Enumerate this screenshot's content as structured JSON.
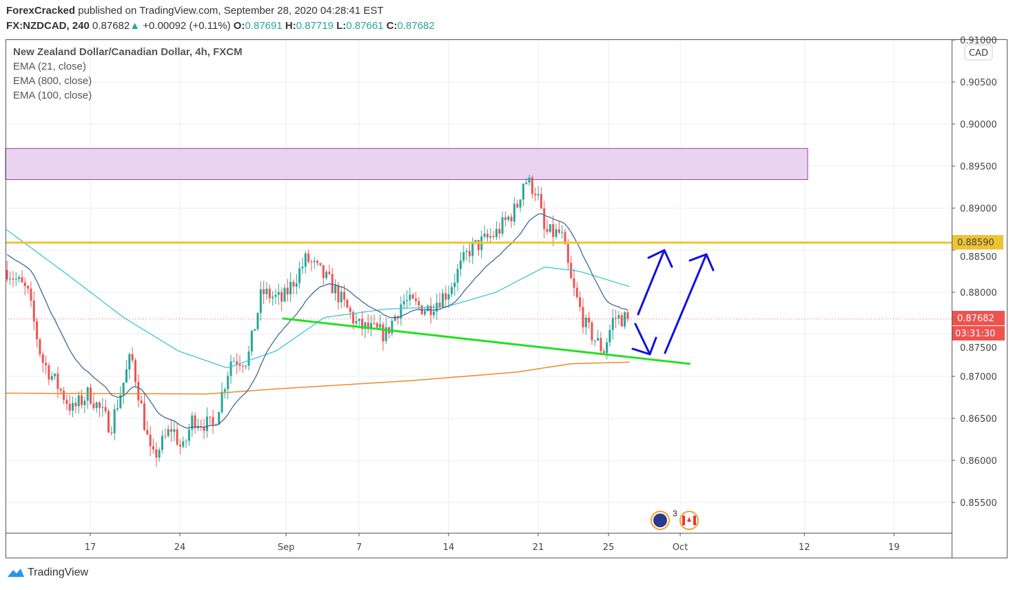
{
  "header": {
    "author": "ForexCracked",
    "published": " published on TradingView.com, September 28, 2020 04:28:41 EST",
    "symbol": "FX:NZDCAD, 240",
    "last": "0.87682",
    "change": "+0.00092 (+0.11%)",
    "o_label": "O:",
    "o": "0.87691",
    "h_label": "H:",
    "h": "0.87719",
    "l_label": "L:",
    "l": "0.87661",
    "c_label": "C:",
    "c": "0.87682"
  },
  "legend": {
    "title": "New Zealand Dollar/Canadian Dollar, 4h, FXCM",
    "ema1": "EMA (21, close)",
    "ema2": "EMA (800, close)",
    "ema3": "EMA (100, close)"
  },
  "footer": {
    "brand": "TradingView"
  },
  "chart_data": {
    "type": "candlestick",
    "currency": "CAD",
    "y_ticks": [
      "0.91000",
      "0.90500",
      "0.90000",
      "0.89500",
      "0.89000",
      "0.88500",
      "0.88000",
      "0.87500",
      "0.87000",
      "0.86500",
      "0.86000",
      "0.85500"
    ],
    "ylim": [
      0.8516,
      0.9103
    ],
    "x_ticks": [
      {
        "label": "17",
        "day": 0
      },
      {
        "label": "24",
        "day": 7
      },
      {
        "label": "Sep",
        "day": 15.3
      },
      {
        "label": "7",
        "day": 21
      },
      {
        "label": "14",
        "day": 28
      },
      {
        "label": "21",
        "day": 35
      },
      {
        "label": "25",
        "day": 40.5
      },
      {
        "label": "Oct",
        "day": 46.1
      },
      {
        "label": "12",
        "day": 55.8
      },
      {
        "label": "19",
        "day": 62.8
      }
    ],
    "x_unit": "days since Aug 17, 2020",
    "close_path": [
      [
        -6.6,
        0.8828
      ],
      [
        -4.9,
        0.88
      ],
      [
        -3.8,
        0.872
      ],
      [
        -1.4,
        0.866
      ],
      [
        -0.1,
        0.868
      ],
      [
        1.6,
        0.864
      ],
      [
        3.2,
        0.8725
      ],
      [
        4.8,
        0.86
      ],
      [
        6.4,
        0.864
      ],
      [
        7.2,
        0.861
      ],
      [
        8.0,
        0.865
      ],
      [
        9.6,
        0.864
      ],
      [
        11.0,
        0.872
      ],
      [
        12.3,
        0.872
      ],
      [
        13.4,
        0.88
      ],
      [
        15.0,
        0.879
      ],
      [
        16.9,
        0.884
      ],
      [
        18.8,
        0.881
      ],
      [
        20.9,
        0.876
      ],
      [
        23.1,
        0.875
      ],
      [
        24.4,
        0.879
      ],
      [
        26.3,
        0.878
      ],
      [
        27.9,
        0.88
      ],
      [
        29.6,
        0.885
      ],
      [
        31.7,
        0.887
      ],
      [
        33.3,
        0.89
      ],
      [
        33.9,
        0.8935
      ],
      [
        34.9,
        0.892
      ],
      [
        35.5,
        0.887
      ],
      [
        36.8,
        0.887
      ],
      [
        37.6,
        0.881
      ],
      [
        38.7,
        0.876
      ],
      [
        40.1,
        0.873
      ],
      [
        40.9,
        0.877
      ],
      [
        42.2,
        0.87682
      ]
    ],
    "ema21_start": 0.8848,
    "ema100": [
      [
        -6.6,
        0.8875
      ],
      [
        -1.7,
        0.882
      ],
      [
        2.6,
        0.877
      ],
      [
        6.9,
        0.873
      ],
      [
        10.7,
        0.871
      ],
      [
        14.5,
        0.873
      ],
      [
        18.3,
        0.877
      ],
      [
        23.1,
        0.878
      ],
      [
        27.9,
        0.8783
      ],
      [
        31.7,
        0.88
      ],
      [
        35.5,
        0.883
      ],
      [
        38.2,
        0.8825
      ],
      [
        42.3,
        0.8806
      ]
    ],
    "ema800": [
      [
        -6.6,
        0.868
      ],
      [
        9.1,
        0.8679
      ],
      [
        14.5,
        0.8685
      ],
      [
        25.2,
        0.8695
      ],
      [
        33.3,
        0.8705
      ],
      [
        37.6,
        0.8715
      ],
      [
        42.3,
        0.8717
      ]
    ],
    "resistance_zone": [
      0.8934,
      0.8971
    ],
    "level": {
      "value": 0.8859,
      "label": "0.88590"
    },
    "trendline": [
      [
        15.0,
        0.87689
      ],
      [
        46.9,
        0.87148
      ]
    ],
    "last_price": {
      "value": 0.87682,
      "label": "0.87682",
      "countdown": "03:31:30"
    },
    "events": {
      "count": "3"
    },
    "colors": {
      "up": "#26a69a",
      "down": "#ef5350",
      "ema21": "#3d6a98",
      "ema100": "#3cc6d3",
      "ema800": "#f0892a",
      "zone": "#e9d3ee",
      "level": "#eec232",
      "trend": "#22e022",
      "arrows": "#1010e0"
    }
  }
}
